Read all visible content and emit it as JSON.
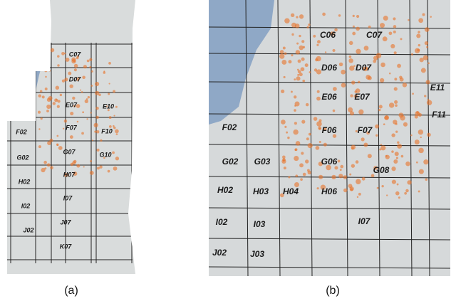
{
  "panels": [
    {
      "caption": "(a)",
      "labels": [
        "C07",
        "D07",
        "E07",
        "F07",
        "G07",
        "H07",
        "I07",
        "J07",
        "K07",
        "E10",
        "F10",
        "G10",
        "F02",
        "G02",
        "H02",
        "I02",
        "J02"
      ]
    },
    {
      "caption": "(b)",
      "labels": [
        "C06",
        "C07",
        "D06",
        "D07",
        "E06",
        "E07",
        "F06",
        "F07",
        "G06",
        "G02",
        "G03",
        "F02",
        "H02",
        "H03",
        "H04",
        "H06",
        "I02",
        "I03",
        "I07",
        "J02",
        "J03",
        "E11",
        "F11",
        "G08"
      ]
    }
  ]
}
